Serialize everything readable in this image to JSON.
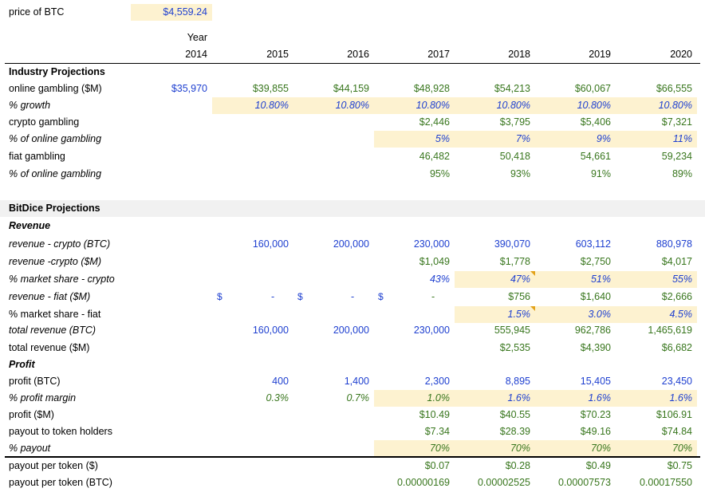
{
  "columns": [
    "2014",
    "2015",
    "2016",
    "2017",
    "2018",
    "2019",
    "2020"
  ],
  "header": {
    "price_label": "price of BTC",
    "price_value": "$4,559.24",
    "year_label": "Year"
  },
  "industry": {
    "title": "Industry Projections",
    "rows": [
      {
        "label": "online gambling ($M)",
        "italic": false,
        "values": [
          "$35,970",
          "$39,855",
          "$44,159",
          "$48,928",
          "$54,213",
          "$60,067",
          "$66,555"
        ],
        "colors": [
          "blue",
          "green",
          "green",
          "green",
          "green",
          "green",
          "green"
        ],
        "hl": []
      },
      {
        "label": "% growth",
        "italic": true,
        "values": [
          "",
          "10.80%",
          "10.80%",
          "10.80%",
          "10.80%",
          "10.80%",
          "10.80%"
        ],
        "colors": [
          "blue",
          "blue",
          "blue",
          "blue",
          "blue",
          "blue",
          "blue"
        ],
        "hl": [
          1,
          2,
          3,
          4,
          5,
          6
        ],
        "ital_vals": true
      },
      {
        "label": "crypto gambling",
        "italic": false,
        "values": [
          "",
          "",
          "",
          "$2,446",
          "$3,795",
          "$5,406",
          "$7,321"
        ],
        "colors": [
          "green",
          "green",
          "green",
          "green",
          "green",
          "green",
          "green"
        ],
        "hl": []
      },
      {
        "label": "% of online gambling",
        "italic": true,
        "values": [
          "",
          "",
          "",
          "5%",
          "7%",
          "9%",
          "11%"
        ],
        "colors": [
          "blue",
          "blue",
          "blue",
          "blue",
          "blue",
          "blue",
          "blue"
        ],
        "hl": [
          3,
          4,
          5,
          6
        ],
        "ital_vals": true
      },
      {
        "label": "fiat gambling",
        "italic": false,
        "values": [
          "",
          "",
          "",
          "46,482",
          "50,418",
          "54,661",
          "59,234"
        ],
        "colors": [
          "green",
          "green",
          "green",
          "green",
          "green",
          "green",
          "green"
        ],
        "hl": []
      },
      {
        "label": "% of online gambling",
        "italic": true,
        "values": [
          "",
          "",
          "",
          "95%",
          "93%",
          "91%",
          "89%"
        ],
        "colors": [
          "green",
          "green",
          "green",
          "green",
          "green",
          "green",
          "green"
        ],
        "hl": []
      }
    ]
  },
  "bitdice": {
    "title": "BitDice Projections",
    "revenue_label": "Revenue",
    "profit_label": "Profit",
    "revenue_rows": [
      {
        "label": "revenue - crypto (BTC)",
        "italic": true,
        "values": [
          "",
          "160,000",
          "200,000",
          "230,000",
          "390,070",
          "603,112",
          "880,978"
        ],
        "colors": [
          "blue",
          "blue",
          "blue",
          "blue",
          "blue",
          "blue",
          "blue"
        ],
        "hl": []
      },
      {
        "label": "revenue -crypto ($M)",
        "italic": true,
        "values": [
          "",
          "",
          "",
          "$1,049",
          "$1,778",
          "$2,750",
          "$4,017"
        ],
        "colors": [
          "green",
          "green",
          "green",
          "green",
          "green",
          "green",
          "green"
        ],
        "hl": []
      },
      {
        "label": "% market share - crypto",
        "italic": true,
        "values": [
          "",
          "",
          "",
          "43%",
          "47%",
          "51%",
          "55%"
        ],
        "colors": [
          "blue",
          "blue",
          "blue",
          "blue",
          "blue",
          "blue",
          "blue"
        ],
        "hl": [
          4,
          5,
          6
        ],
        "ital_vals": true,
        "notes": [
          4
        ]
      },
      {
        "label": "revenue - fiat ($M)",
        "italic": true,
        "values": [
          "",
          "",
          "",
          "",
          "$756",
          "$1,640",
          "$2,666"
        ],
        "colors": [
          "green",
          "green",
          "green",
          "green",
          "green",
          "green",
          "green"
        ],
        "hl": [],
        "fiat_placeholder": {
          "symbol": "$",
          "dash": "-"
        }
      },
      {
        "label": "% market share - fiat",
        "italic": false,
        "values": [
          "",
          "",
          "",
          "",
          "1.5%",
          "3.0%",
          "4.5%"
        ],
        "colors": [
          "blue",
          "blue",
          "blue",
          "blue",
          "blue",
          "blue",
          "blue"
        ],
        "hl": [
          4,
          5,
          6
        ],
        "ital_vals": true,
        "notes": [
          4
        ]
      },
      {
        "label": "total revenue (BTC)",
        "italic": true,
        "values": [
          "",
          "160,000",
          "200,000",
          "230,000",
          "555,945",
          "962,786",
          "1,465,619"
        ],
        "colors": [
          "blue",
          "blue",
          "blue",
          "blue",
          "green",
          "green",
          "green"
        ],
        "hl": []
      },
      {
        "label": "total revenue ($M)",
        "italic": false,
        "values": [
          "",
          "",
          "",
          "",
          "$2,535",
          "$4,390",
          "$6,682"
        ],
        "colors": [
          "green",
          "green",
          "green",
          "green",
          "green",
          "green",
          "green"
        ],
        "hl": []
      }
    ],
    "profit_rows": [
      {
        "label": "profit (BTC)",
        "italic": false,
        "values": [
          "",
          "400",
          "1,400",
          "2,300",
          "8,895",
          "15,405",
          "23,450"
        ],
        "colors": [
          "blue",
          "blue",
          "blue",
          "blue",
          "blue",
          "blue",
          "blue"
        ],
        "hl": []
      },
      {
        "label": "% profit margin",
        "italic": true,
        "values": [
          "",
          "0.3%",
          "0.7%",
          "1.0%",
          "1.6%",
          "1.6%",
          "1.6%"
        ],
        "colors": [
          "green",
          "green",
          "green",
          "green",
          "blue",
          "blue",
          "blue"
        ],
        "hl": [
          3,
          4,
          5,
          6
        ],
        "ital_vals": true
      },
      {
        "label": "profit ($M)",
        "italic": false,
        "values": [
          "",
          "",
          "",
          "$10.49",
          "$40.55",
          "$70.23",
          "$106.91"
        ],
        "colors": [
          "green",
          "green",
          "green",
          "green",
          "green",
          "green",
          "green"
        ],
        "hl": []
      },
      {
        "label": "payout to token holders",
        "italic": false,
        "values": [
          "",
          "",
          "",
          "$7.34",
          "$28.39",
          "$49.16",
          "$74.84"
        ],
        "colors": [
          "green",
          "green",
          "green",
          "green",
          "green",
          "green",
          "green"
        ],
        "hl": []
      },
      {
        "label": "% payout",
        "italic": true,
        "values": [
          "",
          "",
          "",
          "70%",
          "70%",
          "70%",
          "70%"
        ],
        "colors": [
          "green",
          "green",
          "green",
          "green",
          "green",
          "green",
          "green"
        ],
        "hl": [
          3,
          4,
          5,
          6
        ],
        "ital_vals": true
      }
    ],
    "payout_rows": [
      {
        "label": "payout per token ($)",
        "italic": false,
        "values": [
          "",
          "",
          "",
          "$0.07",
          "$0.28",
          "$0.49",
          "$0.75"
        ],
        "colors": [
          "green",
          "green",
          "green",
          "green",
          "green",
          "green",
          "green"
        ],
        "hl": []
      },
      {
        "label": "payout per token (BTC)",
        "italic": false,
        "values": [
          "",
          "",
          "",
          "0.00000169",
          "0.00002525",
          "0.00007573",
          "0.00017550"
        ],
        "colors": [
          "green",
          "green",
          "green",
          "green",
          "green",
          "green",
          "green"
        ],
        "hl": []
      }
    ]
  },
  "colors": {
    "highlight": "#fdf2d0",
    "input_blue": "#1f40d0",
    "formula_green": "#38761d",
    "note": "#e3a21a"
  }
}
